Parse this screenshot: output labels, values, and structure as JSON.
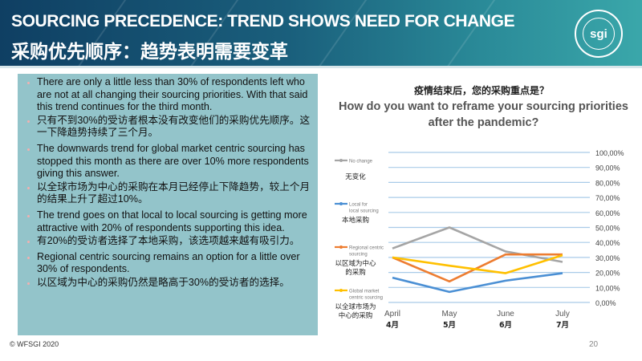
{
  "header": {
    "title_en": "SOURCING PRECEDENCE: TREND SHOWS NEED FOR CHANGE",
    "title_zh": "采购优先顺序：趋势表明需要变革",
    "logo_text": "sgi",
    "logo_ring_text": "WORLD FEDERATION SPORTING GOODS INDUSTRY"
  },
  "bullets": [
    {
      "text": "There are only a little less than 30% of respondents left who are not at all changing their sourcing priorities. With that said this trend continues for the third month.",
      "zh": false
    },
    {
      "text": "只有不到30%的受访者根本没有改变他们的采购优先顺序。这一下降趋势持续了三个月。",
      "zh": true
    },
    {
      "text": "The downwards trend for global market centric sourcing has stopped this month as there are over 10% more respondents giving this answer.",
      "zh": false
    },
    {
      "text": "以全球市场为中心的采购在本月已经停止下降趋势，较上个月的结果上升了超过10%。",
      "zh": true
    },
    {
      "text": "The trend goes on that local to local sourcing is getting more attractive with 20% of respondents supporting this idea.",
      "zh": false
    },
    {
      "text": "有20%的受访者选择了本地采购，该选项越来越有吸引力。",
      "zh": true
    },
    {
      "text": "Regional centric sourcing remains an option for a little over 30% of respondents.",
      "zh": false
    },
    {
      "text": "以区域为中心的采购仍然是略高于30%的受访者的选择。",
      "zh": true
    }
  ],
  "chart_data": {
    "type": "line",
    "title_zh": "疫情结束后，您的采购重点是？",
    "title": "How do you want to reframe your sourcing priorities after the pandemic?",
    "categories": [
      "April",
      "May",
      "June",
      "July"
    ],
    "categories_zh": [
      "4月",
      "5月",
      "6月",
      "7月"
    ],
    "ylim": [
      0,
      100
    ],
    "yticks": [
      "0,00%",
      "10,00%",
      "20,00%",
      "30,00%",
      "40,00%",
      "50,00%",
      "60,00%",
      "70,00%",
      "80,00%",
      "90,00%",
      "100,00%"
    ],
    "legend_position": "left",
    "series": [
      {
        "name": "No change",
        "name_zh": "无变化",
        "color": "#a5a5a5",
        "values": [
          36,
          50,
          34,
          27
        ]
      },
      {
        "name": "Local for local sourcing",
        "name_zh": "本地采购",
        "color": "#4a8fd4",
        "values": [
          16.5,
          7,
          14.5,
          19.5
        ]
      },
      {
        "name": "Regional centric sourcing",
        "name_zh": "以区域为中心的采购",
        "color": "#ed7d31",
        "values": [
          30,
          14,
          32,
          32
        ]
      },
      {
        "name": "Global market centric sourcing",
        "name_zh": "以全球市场为中心的采购",
        "color": "#ffc000",
        "values": [
          30,
          24.5,
          19.5,
          31.5
        ]
      }
    ]
  },
  "footer": {
    "copyright": "© WFSGI 2020",
    "page": "20"
  }
}
